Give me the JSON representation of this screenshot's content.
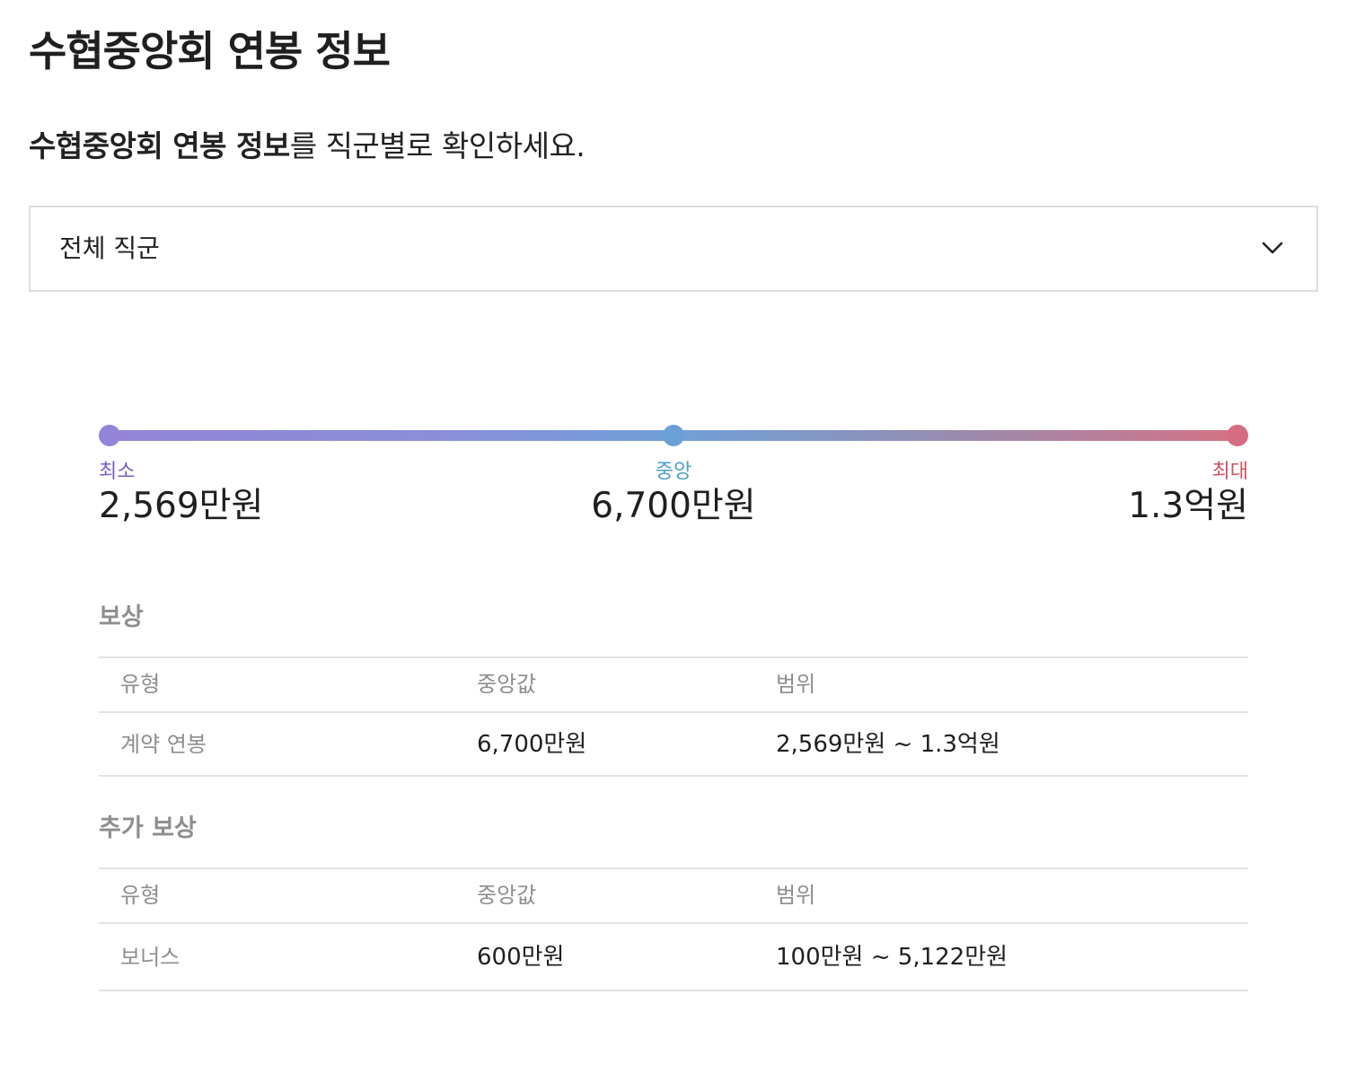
{
  "page": {
    "title": "수협중앙회 연봉 정보"
  },
  "intro": {
    "company": "수협중앙회 연봉 정보",
    "suffix": "를 직군별로 확인하세요."
  },
  "job_select": {
    "value": "전체 직군",
    "icon": "chevron-down-icon"
  },
  "range": {
    "min_label": "최소",
    "min_value": "2,569만원",
    "median_label": "중앙",
    "median_value": "6,700만원",
    "max_label": "최대",
    "max_value": "1.3억원",
    "colors": {
      "min": "#9484d9",
      "median": "#6aa0d5",
      "max": "#d66c80"
    }
  },
  "compensation": {
    "title": "보상",
    "headers": [
      "유형",
      "중앙값",
      "범위"
    ],
    "rows": [
      {
        "type": "계약 연봉",
        "median": "6,700만원",
        "range": "2,569만원 ~ 1.3억원"
      }
    ]
  },
  "additional": {
    "title": "추가 보상",
    "headers": [
      "유형",
      "중앙값",
      "범위"
    ],
    "rows": [
      {
        "type": "보너스",
        "median": "600만원",
        "range": "100만원 ~ 5,122만원"
      }
    ]
  }
}
